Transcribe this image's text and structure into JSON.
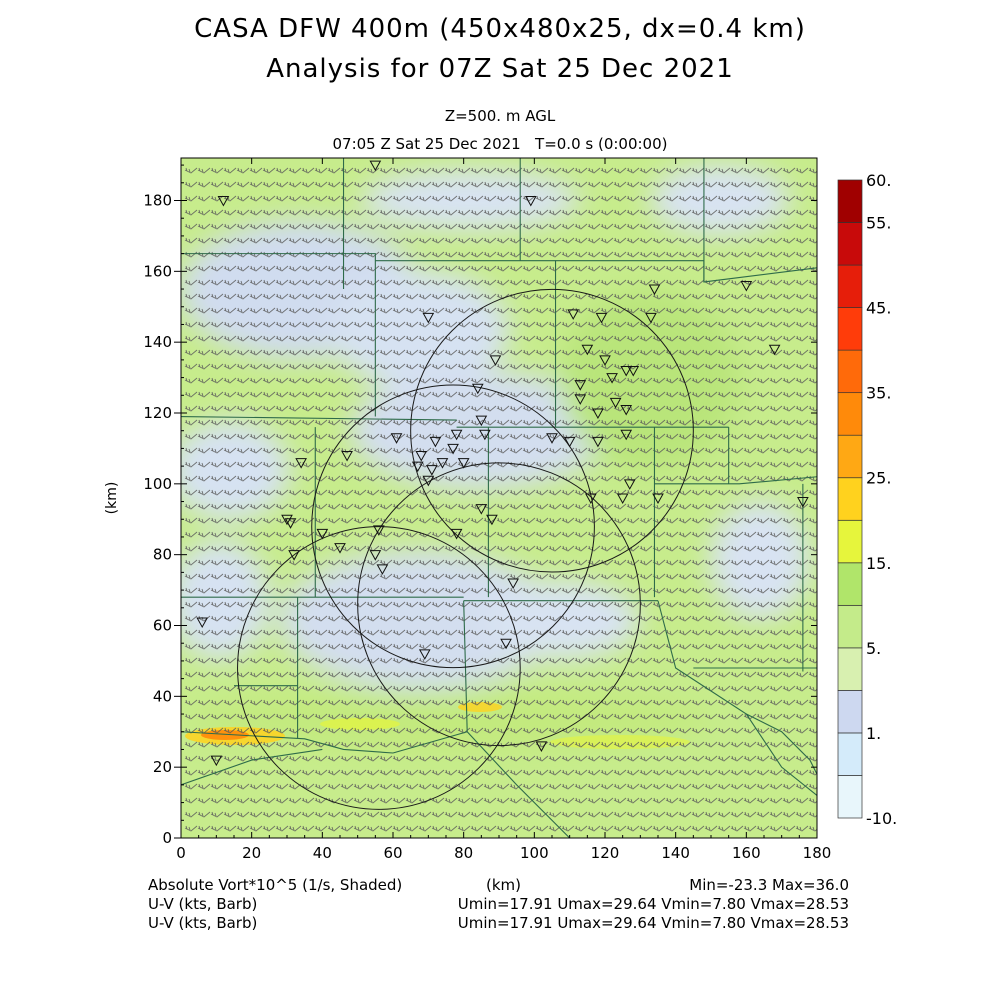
{
  "header": {
    "title_line1": "CASA DFW 400m (450x480x25, dx=0.4 km)",
    "title_line2": "Analysis for 07Z Sat 25 Dec 2021",
    "level": "Z=500. m AGL",
    "time": "07:05 Z Sat 25 Dec 2021   T=0.0 s (0:00:00)"
  },
  "footer": {
    "field_label": "Absolute Vort*10^5 (1/s, Shaded)",
    "x_unit": "(km)",
    "minmax": "Min=-23.3 Max=36.0",
    "barb1_label": "U-V (kts, Barb)",
    "barb1_stats": "Umin=17.91 Umax=29.64 Vmin=7.80 Vmax=28.53",
    "barb2_label": "U-V (kts, Barb)",
    "barb2_stats": "Umin=17.91 Umax=29.64 Vmin=7.80 Vmax=28.53"
  },
  "chart_data": {
    "type": "heatmap",
    "title": "CASA DFW 400m (450x480x25, dx=0.4 km)",
    "subtitle": "Analysis for 07Z Sat 25 Dec 2021",
    "xlabel": "(km)",
    "ylabel": "(km)",
    "xlim": [
      0,
      180
    ],
    "ylim": [
      0,
      192
    ],
    "x_ticks": [
      0,
      20,
      40,
      60,
      80,
      100,
      120,
      140,
      160,
      180
    ],
    "y_ticks": [
      0,
      20,
      40,
      60,
      80,
      100,
      120,
      140,
      160,
      180
    ],
    "colorbar": {
      "labels": [
        "-10.",
        "1.",
        "5.",
        "15.",
        "25.",
        "35.",
        "45.",
        "55.",
        "60."
      ],
      "colors": [
        "#e8f6fb",
        "#d4ebfa",
        "#cdd8f0",
        "#d8f0b0",
        "#c4eb8a",
        "#b0e56a",
        "#e6f53c",
        "#ffd21e",
        "#ffa814",
        "#ff8a0a",
        "#ff6a0a",
        "#ff3c0a",
        "#e61e0a",
        "#c80a0a",
        "#a00000"
      ]
    },
    "field_range": {
      "min": -23.3,
      "max": 36.0
    },
    "radar_rings": [
      {
        "cx": 105,
        "cy": 115,
        "r": 40
      },
      {
        "cx": 77,
        "cy": 88,
        "r": 40
      },
      {
        "cx": 90,
        "cy": 66,
        "r": 40
      },
      {
        "cx": 56,
        "cy": 48,
        "r": 40
      }
    ],
    "counties": [
      [
        [
          46,
          192
        ],
        [
          46,
          155
        ]
      ],
      [
        [
          96,
          192
        ],
        [
          96,
          163
        ]
      ],
      [
        [
          148,
          192
        ],
        [
          148,
          157
        ]
      ],
      [
        [
          0,
          165
        ],
        [
          55,
          165
        ],
        [
          55,
          119
        ]
      ],
      [
        [
          55,
          163
        ],
        [
          106,
          163
        ],
        [
          106,
          116
        ]
      ],
      [
        [
          106,
          163
        ],
        [
          148,
          163
        ],
        [
          148,
          157
        ],
        [
          180,
          161
        ]
      ],
      [
        [
          0,
          119
        ],
        [
          78,
          118
        ]
      ],
      [
        [
          78,
          116
        ],
        [
          155,
          116
        ]
      ],
      [
        [
          155,
          116
        ],
        [
          155,
          100
        ]
      ],
      [
        [
          38,
          116
        ],
        [
          38,
          68
        ]
      ],
      [
        [
          87,
          116
        ],
        [
          87,
          68
        ]
      ],
      [
        [
          134,
          116
        ],
        [
          134,
          68
        ]
      ],
      [
        [
          134,
          100
        ],
        [
          158,
          100
        ],
        [
          180,
          102
        ]
      ],
      [
        [
          176,
          100
        ],
        [
          176,
          47
        ]
      ],
      [
        [
          0,
          68
        ],
        [
          80,
          68
        ]
      ],
      [
        [
          80,
          67
        ],
        [
          135,
          67
        ]
      ],
      [
        [
          80,
          67
        ],
        [
          81,
          30
        ]
      ],
      [
        [
          33,
          68
        ],
        [
          33,
          28
        ]
      ],
      [
        [
          15,
          43
        ],
        [
          33,
          43
        ]
      ],
      [
        [
          145,
          48
        ],
        [
          180,
          48
        ]
      ],
      [
        [
          81,
          30
        ],
        [
          95,
          15
        ],
        [
          110,
          0
        ]
      ],
      [
        [
          0,
          30
        ],
        [
          35,
          28
        ],
        [
          46,
          25
        ],
        [
          60,
          24
        ]
      ],
      [
        [
          60,
          24
        ],
        [
          81,
          30
        ]
      ],
      [
        [
          0,
          15
        ],
        [
          20,
          22
        ],
        [
          40,
          25
        ]
      ],
      [
        [
          135,
          67
        ],
        [
          140,
          48
        ],
        [
          160,
          35
        ],
        [
          170,
          20
        ],
        [
          180,
          12
        ]
      ],
      [
        [
          160,
          35
        ],
        [
          170,
          30
        ],
        [
          178,
          22
        ],
        [
          180,
          18
        ]
      ]
    ],
    "stations": [
      [
        55,
        190
      ],
      [
        12,
        180
      ],
      [
        99,
        180
      ],
      [
        134,
        155
      ],
      [
        111,
        148
      ],
      [
        160,
        156
      ],
      [
        133,
        147
      ],
      [
        70,
        147
      ],
      [
        89,
        135
      ],
      [
        119,
        147
      ],
      [
        115,
        138
      ],
      [
        120,
        135
      ],
      [
        126,
        132
      ],
      [
        122,
        130
      ],
      [
        128,
        132
      ],
      [
        168,
        138
      ],
      [
        113,
        128
      ],
      [
        113,
        124
      ],
      [
        123,
        123
      ],
      [
        118,
        120
      ],
      [
        126,
        121
      ],
      [
        84,
        127
      ],
      [
        85,
        118
      ],
      [
        78,
        114
      ],
      [
        72,
        112
      ],
      [
        61,
        113
      ],
      [
        86,
        114
      ],
      [
        68,
        108
      ],
      [
        77,
        110
      ],
      [
        74,
        106
      ],
      [
        105,
        113
      ],
      [
        110,
        112
      ],
      [
        126,
        114
      ],
      [
        118,
        112
      ],
      [
        34,
        106
      ],
      [
        47,
        108
      ],
      [
        67,
        105
      ],
      [
        71,
        104
      ],
      [
        70,
        101
      ],
      [
        80,
        106
      ],
      [
        125,
        96
      ],
      [
        127,
        100
      ],
      [
        135,
        96
      ],
      [
        116,
        96
      ],
      [
        30,
        90
      ],
      [
        85,
        93
      ],
      [
        88,
        90
      ],
      [
        56,
        87
      ],
      [
        78,
        86
      ],
      [
        31,
        89
      ],
      [
        40,
        86
      ],
      [
        32,
        80
      ],
      [
        55,
        80
      ],
      [
        45,
        82
      ],
      [
        57,
        76
      ],
      [
        94,
        72
      ],
      [
        6,
        61
      ],
      [
        92,
        55
      ],
      [
        69,
        52
      ],
      [
        102,
        26
      ],
      [
        10,
        22
      ],
      [
        176,
        95
      ]
    ]
  }
}
